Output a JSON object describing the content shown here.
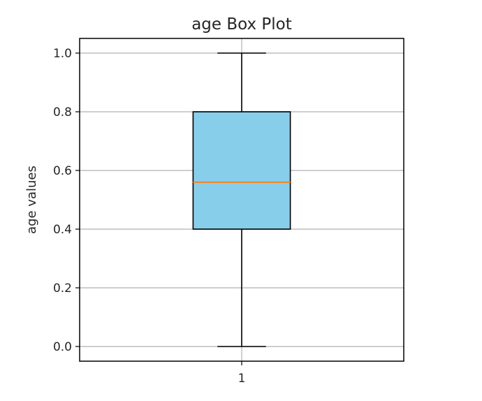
{
  "chart_data": {
    "type": "box",
    "title": "age Box Plot",
    "xlabel": "",
    "ylabel": "age values",
    "ylim": [
      -0.05,
      1.05
    ],
    "yticks": [
      {
        "value": 0.0,
        "label": "0.0"
      },
      {
        "value": 0.2,
        "label": "0.2"
      },
      {
        "value": 0.4,
        "label": "0.4"
      },
      {
        "value": 0.6,
        "label": "0.6"
      },
      {
        "value": 0.8,
        "label": "0.8"
      },
      {
        "value": 1.0,
        "label": "1.0"
      }
    ],
    "xticks": [
      {
        "value": 1,
        "label": "1"
      }
    ],
    "grid": true,
    "boxes": [
      {
        "position": 1,
        "label": "1",
        "min": 0.0,
        "q1": 0.4,
        "median": 0.56,
        "q3": 0.8,
        "max": 1.0
      }
    ],
    "colors": {
      "box_fill": "#87ceeb",
      "box_edge": "#000000",
      "median": "#ff7f0e",
      "grid": "#b0b0b0",
      "axes": "#000000"
    }
  }
}
